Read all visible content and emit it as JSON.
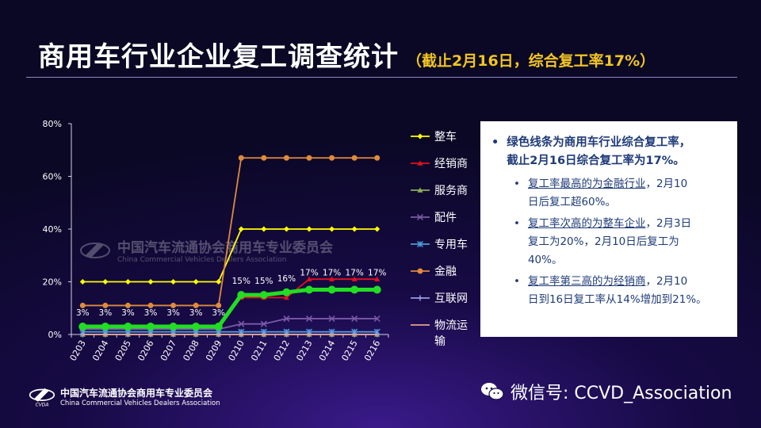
{
  "header": {
    "title": "商用车行业企业复工调查统计",
    "subtitle": "（截止2月16日，综合复工率17%）"
  },
  "chart_data": {
    "type": "line",
    "categories": [
      "0203",
      "0204",
      "0205",
      "0206",
      "0207",
      "0208",
      "0209",
      "0210",
      "0211",
      "0212",
      "0213",
      "0214",
      "0215",
      "0216"
    ],
    "ylim": [
      0,
      0.8
    ],
    "yticks": [
      0,
      0.2,
      0.4,
      0.6,
      0.8
    ],
    "ytick_labels": [
      "0%",
      "20%",
      "40%",
      "60%",
      "80%"
    ],
    "series": [
      {
        "name": "整车",
        "color": "#ffff00",
        "marker": "diamond",
        "values": [
          0.2,
          0.2,
          0.2,
          0.2,
          0.2,
          0.2,
          0.2,
          0.4,
          0.4,
          0.4,
          0.4,
          0.4,
          0.4,
          0.4
        ]
      },
      {
        "name": "经销商",
        "color": "#e0101e",
        "marker": "triangle",
        "values": [
          0.03,
          0.03,
          0.03,
          0.03,
          0.03,
          0.03,
          0.03,
          0.14,
          0.14,
          0.14,
          0.21,
          0.21,
          0.21,
          0.21
        ]
      },
      {
        "name": "服务商",
        "color": "#8fae5b",
        "marker": "triangle",
        "values": [
          0,
          0,
          0,
          0,
          0,
          0,
          0,
          0,
          0,
          0,
          0,
          0,
          0,
          0
        ]
      },
      {
        "name": "配件",
        "color": "#7b5aa6",
        "marker": "x",
        "values": [
          0.02,
          0.02,
          0.02,
          0.02,
          0.02,
          0.02,
          0.02,
          0.04,
          0.04,
          0.06,
          0.06,
          0.06,
          0.06,
          0.06
        ]
      },
      {
        "name": "专用车",
        "color": "#4e9ad6",
        "marker": "star",
        "values": [
          0.01,
          0.01,
          0.01,
          0.01,
          0.01,
          0.01,
          0.01,
          0.01,
          0.01,
          0.01,
          0.01,
          0.01,
          0.01,
          0.01
        ]
      },
      {
        "name": "金融",
        "color": "#e08a3c",
        "marker": "circle",
        "values": [
          0.11,
          0.11,
          0.11,
          0.11,
          0.11,
          0.11,
          0.11,
          0.67,
          0.67,
          0.67,
          0.67,
          0.67,
          0.67,
          0.67
        ]
      },
      {
        "name": "互联网",
        "color": "#9a9ae6",
        "marker": "plus",
        "values": [
          0,
          0,
          0,
          0,
          0,
          0,
          0,
          0,
          0,
          0,
          0,
          0,
          0,
          0
        ]
      },
      {
        "name": "物流运输",
        "color": "#e6a090",
        "marker": "none",
        "values": [
          0,
          0,
          0,
          0,
          0,
          0,
          0,
          0,
          0,
          0,
          0,
          0,
          0,
          0
        ]
      },
      {
        "name": "",
        "color": "#22dd22",
        "marker": "circle",
        "bold": true,
        "values": [
          0.03,
          0.03,
          0.03,
          0.03,
          0.03,
          0.03,
          0.03,
          0.15,
          0.15,
          0.16,
          0.17,
          0.17,
          0.17,
          0.17
        ]
      }
    ],
    "data_labels": [
      "3%",
      "3%",
      "3%",
      "3%",
      "3%",
      "3%",
      "3%",
      "15%",
      "15%",
      "16%",
      "17%",
      "17%",
      "17%",
      "17%"
    ],
    "legend_position": "right",
    "grid": false
  },
  "notes": {
    "main": [
      "绿色线条为商用车行业综合复工率，",
      "截止2月16日综合复工率为17%。"
    ],
    "items": [
      {
        "highlight": "复工率最高的为金融行业",
        "line1_rest": "，2月10",
        "line2": "日后复工超60%。"
      },
      {
        "highlight": "复工率次高的为整车企业",
        "line1_rest": "，2月3日",
        "line2": "复工为20%，2月10日后复工为",
        "line3": "40%。"
      },
      {
        "highlight": "复工率第三高的为经销商",
        "line1_rest": "，2月10",
        "line2": "日到16日复工率从14%增加到21%。"
      }
    ]
  },
  "footer": {
    "org_cn": "中国汽车流通协会商用车专业委员会",
    "org_en": "China Commercial Vehicles Dealers Association",
    "wechat": "微信号: CCVD_Association"
  },
  "watermark": {
    "cn": "中国汽车流通协会商用车专业委员会",
    "en": "China Commercial Vehicles Dealers Association"
  },
  "colors": {
    "accent": "#f2c522",
    "overall_line": "#22dd22",
    "notes_text": "#1f3b78"
  }
}
